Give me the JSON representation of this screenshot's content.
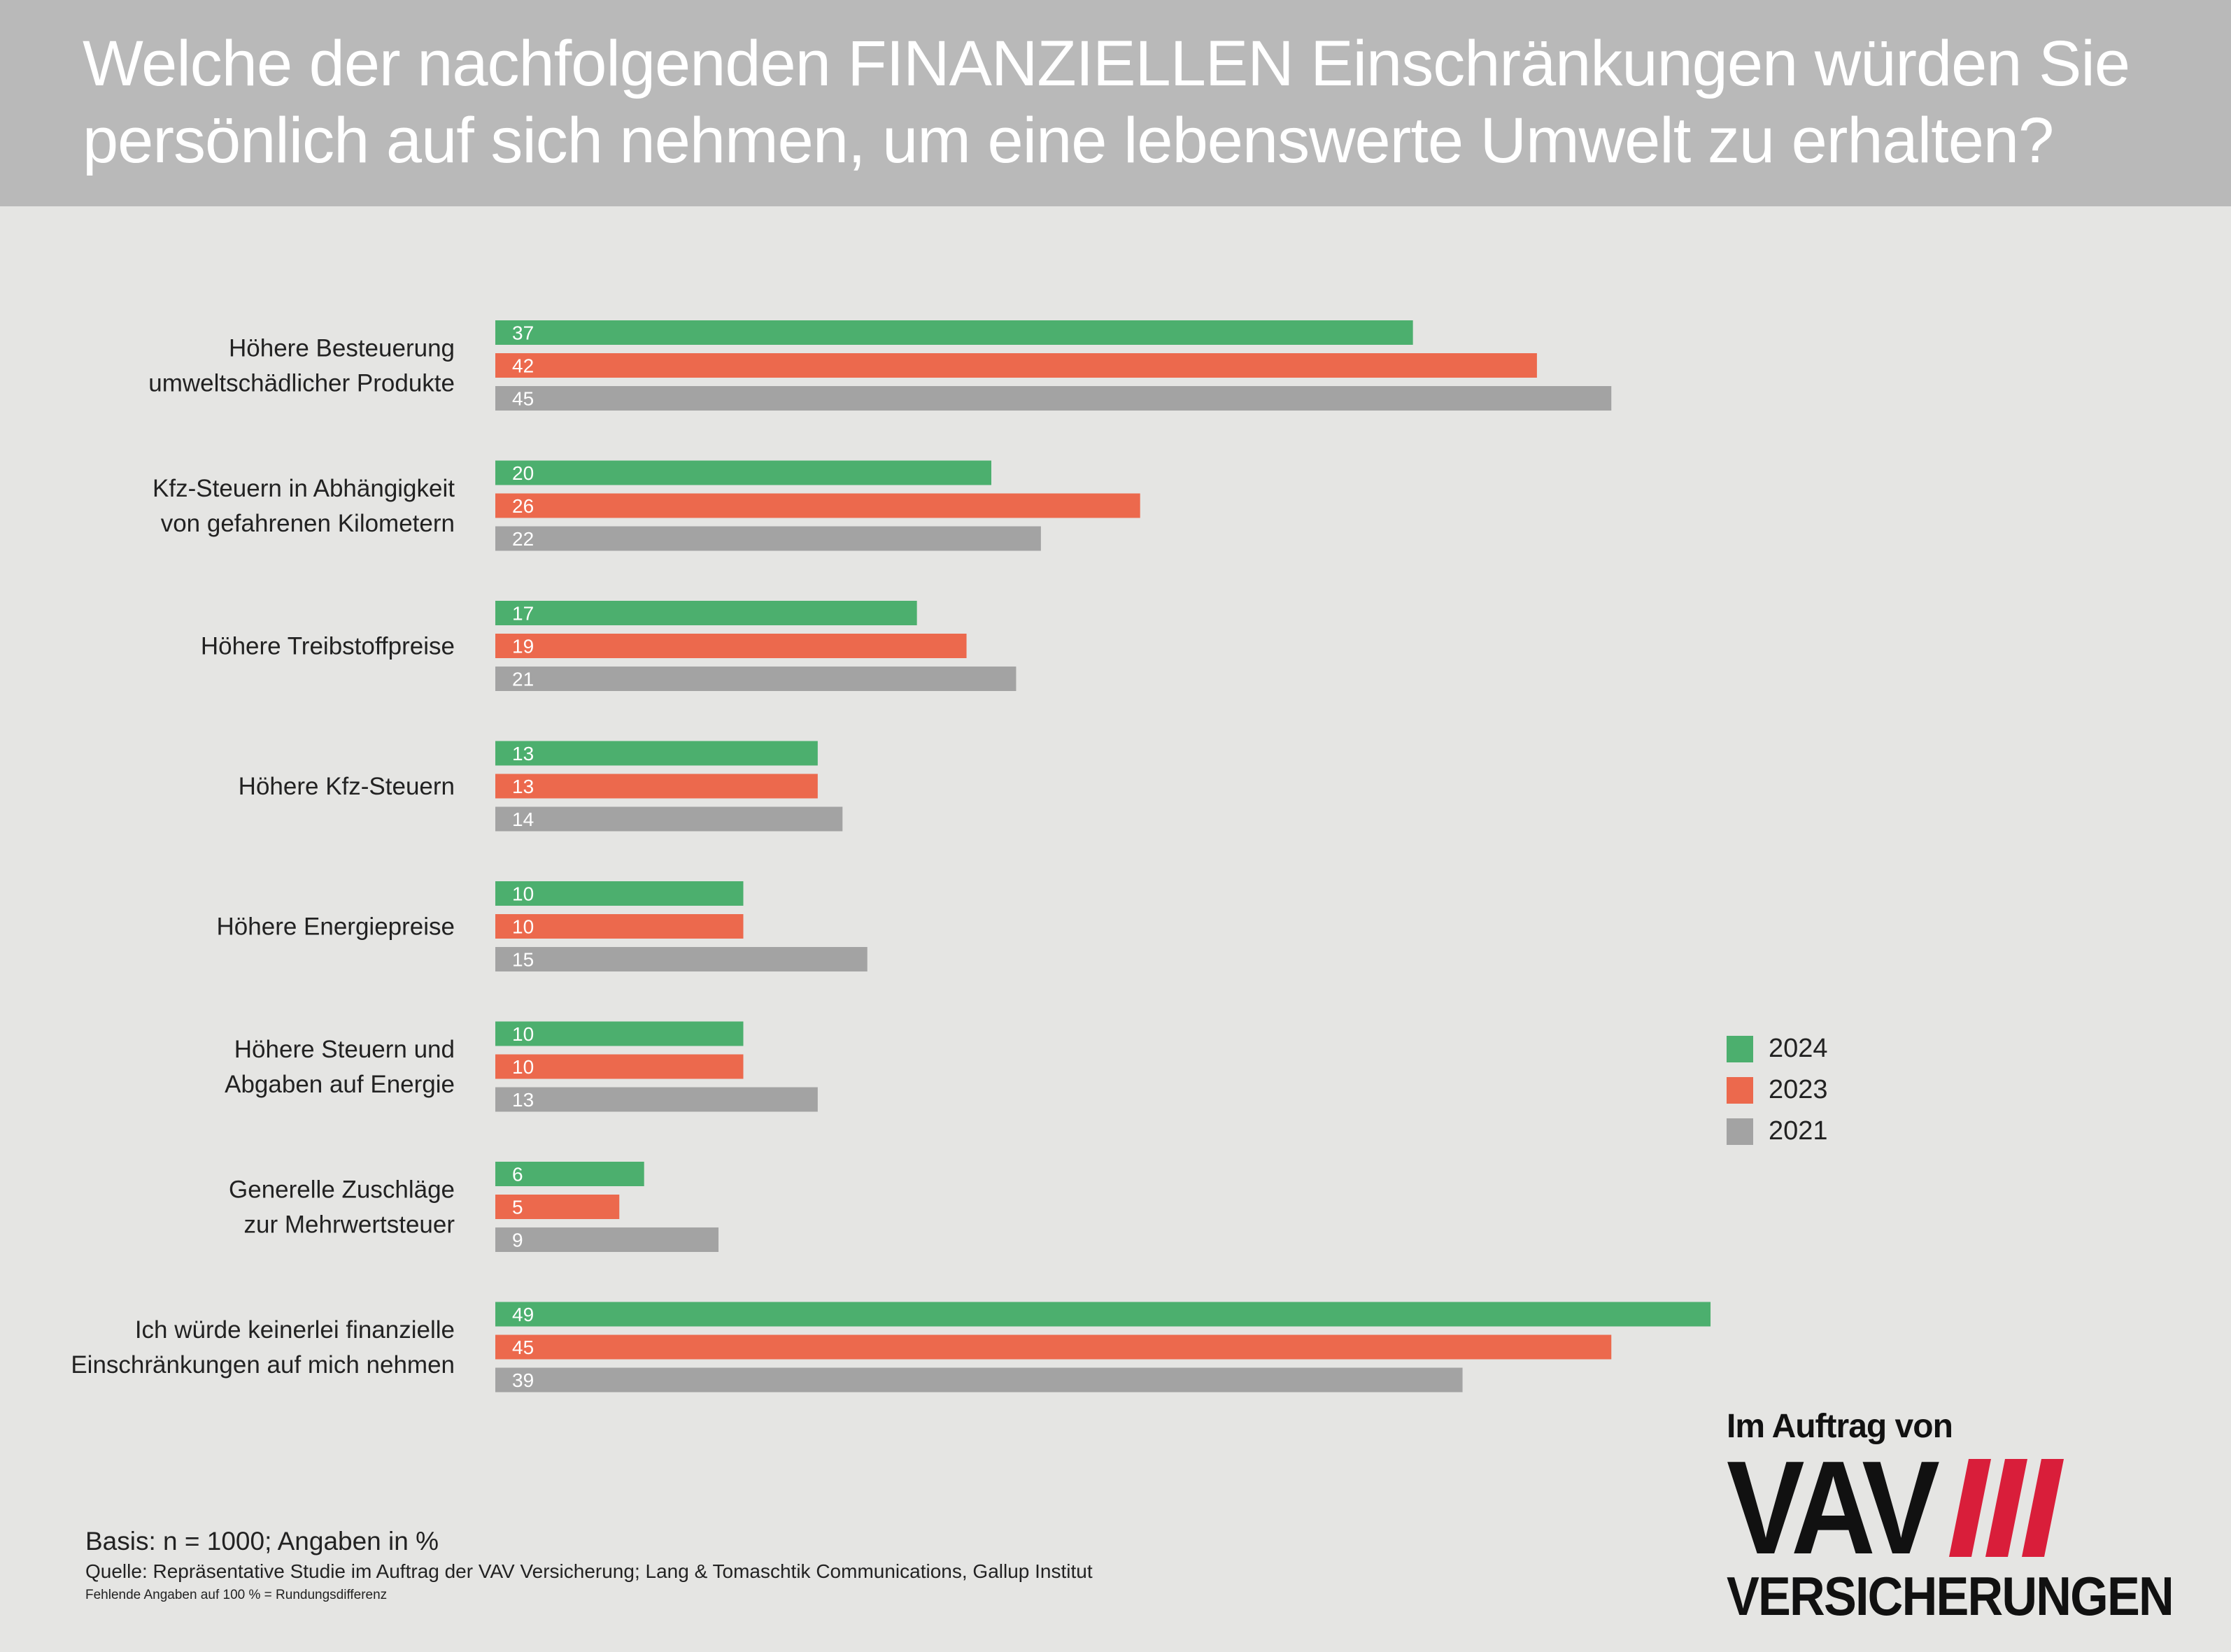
{
  "title": "Welche der nachfolgenden FINANZIELLEN Einschränkungen würden Sie\npersönlich auf sich nehmen, um eine lebenswerte Umwelt zu erhalten?",
  "colors": {
    "header_bg": "#b9b9b9",
    "background": "#e5e5e3",
    "series_2024": "#4caf6e",
    "series_2023": "#ec694d",
    "series_2021": "#a3a3a3",
    "logo_accent": "#d91e3a"
  },
  "chart_data": {
    "type": "bar",
    "orientation": "horizontal",
    "categories": [
      "Höhere Besteuerung\numweltschädlicher Produkte",
      "Kfz-Steuern in Abhängigkeit\nvon gefahrenen Kilometern",
      "Höhere Treibstoffpreise",
      "Höhere Kfz-Steuern",
      "Höhere Energiepreise",
      "Höhere Steuern und\nAbgaben auf Energie",
      "Generelle Zuschläge\nzur Mehrwertsteuer",
      "Ich würde keinerlei finanzielle\nEinschränkungen auf mich nehmen"
    ],
    "series": [
      {
        "name": "2024",
        "color": "#4caf6e",
        "values": [
          37,
          20,
          17,
          13,
          10,
          10,
          6,
          49
        ]
      },
      {
        "name": "2023",
        "color": "#ec694d",
        "values": [
          42,
          26,
          19,
          13,
          10,
          10,
          5,
          45
        ]
      },
      {
        "name": "2021",
        "color": "#a3a3a3",
        "values": [
          45,
          22,
          21,
          14,
          15,
          13,
          9,
          39
        ]
      }
    ],
    "xlim": [
      0,
      49
    ],
    "grid": false,
    "legend_position": "right"
  },
  "footer": {
    "basis": "Basis: n = 1000; Angaben in %",
    "source": "Quelle: Repräsentative Studie im Auftrag der VAV Versicherung; Lang & Tomaschtik Communications, Gallup Institut",
    "footnote": "Fehlende Angaben auf 100 % = Rundungsdifferenz"
  },
  "logo": {
    "line1": "Im Auftrag von",
    "brand": "VAV",
    "line3": "VERSICHERUNGEN"
  }
}
